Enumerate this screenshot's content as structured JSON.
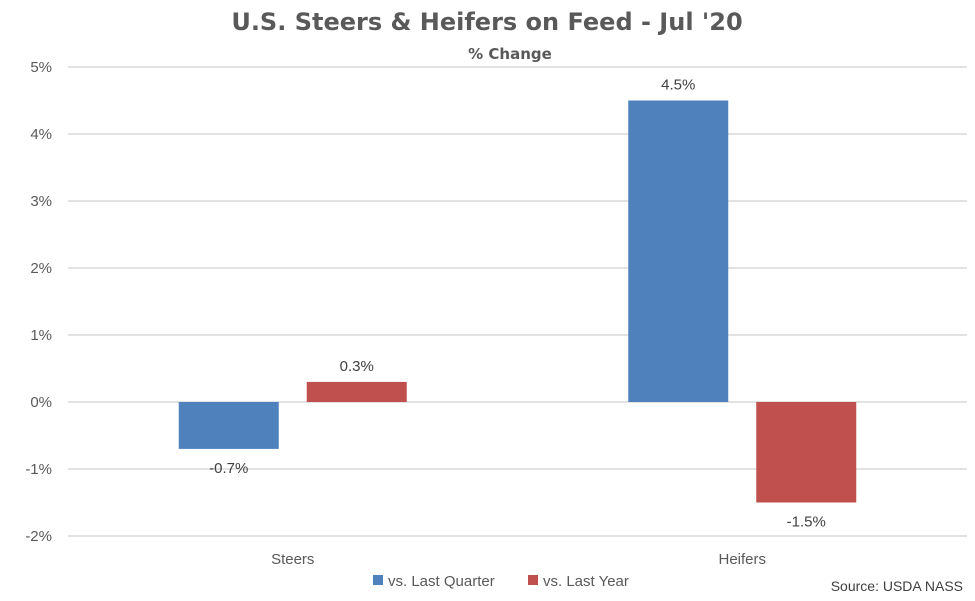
{
  "chart_data": {
    "type": "bar",
    "title": "U.S. Steers & Heifers on Feed - Jul '20",
    "subtitle": "% Change",
    "categories": [
      "Steers",
      "Heifers"
    ],
    "series": [
      {
        "name": "vs. Last Quarter",
        "color": "#4F81BD",
        "values": [
          -0.7,
          4.5
        ],
        "labels": [
          "-0.7%",
          "4.5%"
        ]
      },
      {
        "name": "vs. Last Year",
        "color": "#C0504D",
        "values": [
          0.3,
          -1.5
        ],
        "labels": [
          "0.3%",
          "-1.5%"
        ]
      }
    ],
    "ylim": [
      -2,
      5
    ],
    "yticks": [
      5,
      4,
      3,
      2,
      1,
      0,
      -1,
      -2
    ],
    "ytick_labels": [
      "5%",
      "4%",
      "3%",
      "2%",
      "1%",
      "0%",
      "-1%",
      "-2%"
    ],
    "xlabel": "",
    "ylabel": "",
    "grid": true,
    "legend_position": "bottom",
    "source": "Source: USDA NASS"
  }
}
